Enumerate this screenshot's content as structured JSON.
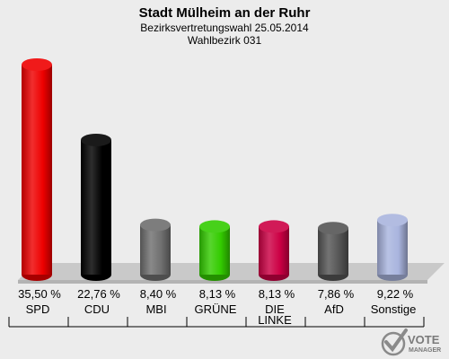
{
  "header": {
    "title": "Stadt Mülheim an der Ruhr",
    "subtitle": "Bezirksvertretungswahl 25.05.2014",
    "district": "Wahlbezirk 031"
  },
  "logo": {
    "name": "VOTE",
    "sub": "MANAGER",
    "icon": "vote-check-icon"
  },
  "chart_data": {
    "type": "bar",
    "title": "Stadt Mülheim an der Ruhr",
    "subtitle": "Bezirksvertretungswahl 25.05.2014 / Wahlbezirk 031",
    "xlabel": "",
    "ylabel": "",
    "ylim": [
      0,
      35.5
    ],
    "grid": false,
    "legend": "none",
    "categories": [
      "SPD",
      "CDU",
      "MBI",
      "GRÜNE",
      "DIE LINKE",
      "AfD",
      "Sonstige"
    ],
    "category_lines": [
      [
        "SPD"
      ],
      [
        "CDU"
      ],
      [
        "MBI"
      ],
      [
        "GRÜNE"
      ],
      [
        "DIE",
        "LINKE"
      ],
      [
        "AfD"
      ],
      [
        "Sonstige"
      ]
    ],
    "values": [
      35.5,
      22.76,
      8.4,
      8.13,
      8.13,
      7.86,
      9.22
    ],
    "value_labels": [
      "35,50 %",
      "22,76 %",
      "8,40 %",
      "8,13 %",
      "8,13 %",
      "7,86 %",
      "9,22 %"
    ],
    "colors": [
      "#ee0000",
      "#000000",
      "#6f6f6f",
      "#33cc00",
      "#cc0044",
      "#555555",
      "#a9b4de"
    ]
  }
}
